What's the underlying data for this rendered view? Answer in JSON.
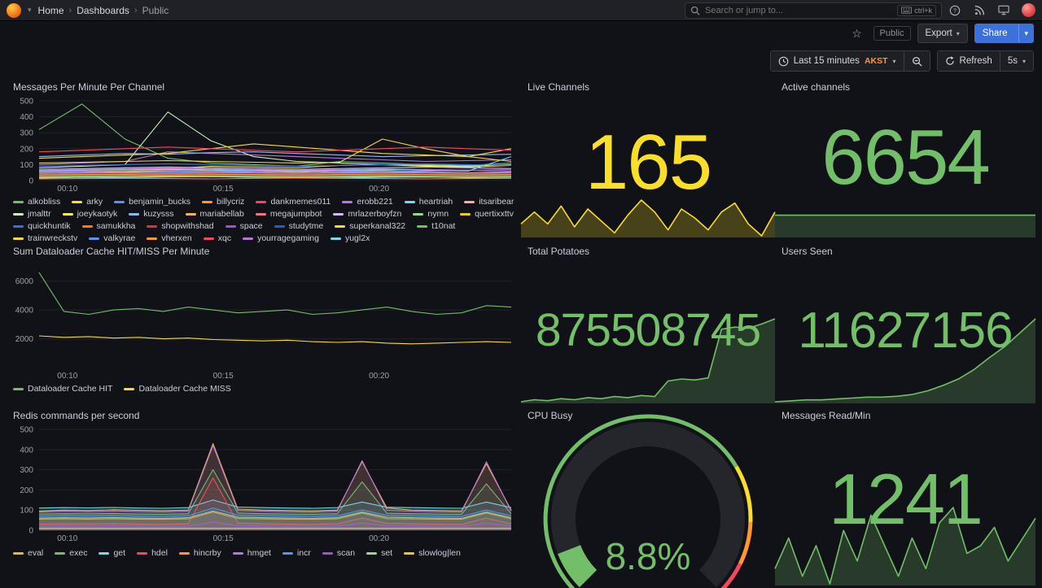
{
  "nav": {
    "breadcrumb": [
      "Home",
      "Dashboards",
      "Public"
    ],
    "search_placeholder": "Search or jump to...",
    "shortcut": "ctrl+k"
  },
  "toolbar": {
    "tag": "Public",
    "export_label": "Export",
    "share_label": "Share"
  },
  "timebar": {
    "range_label": "Last 15 minutes",
    "timezone": "AKST",
    "refresh_label": "Refresh",
    "interval": "5s"
  },
  "colors": {
    "yellow": "#FADE2A",
    "green": "#73BF69",
    "orange": "#FF9830",
    "red": "#F2495C",
    "share_blue": "#3D71D9"
  },
  "chart_data": [
    {
      "id": "messages_per_minute",
      "type": "line",
      "title": "Messages Per Minute Per Channel",
      "ylim": [
        0,
        500
      ],
      "yticks": [
        0,
        100,
        200,
        300,
        400,
        500
      ],
      "xticks": [
        "00:10",
        "00:15",
        "00:20"
      ],
      "xtick_pos": [
        0.06,
        0.39,
        0.72
      ],
      "grid": true,
      "legend_position": "bottom",
      "series": [
        {
          "name": "alkobliss",
          "color": "#73BF69",
          "values": [
            320,
            480,
            260,
            140,
            110,
            100,
            90,
            120,
            110,
            100,
            95,
            110
          ]
        },
        {
          "name": "arky",
          "color": "#FADE2A",
          "values": [
            60,
            70,
            80,
            75,
            90,
            85,
            80,
            95,
            100,
            90,
            85,
            95
          ]
        },
        {
          "name": "benjamin_bucks",
          "color": "#5794F2",
          "values": [
            40,
            45,
            50,
            55,
            50,
            60,
            65,
            60,
            55,
            50,
            45,
            55
          ]
        },
        {
          "name": "billycriz",
          "color": "#FF9830",
          "values": [
            30,
            35,
            40,
            45,
            40,
            35,
            30,
            45,
            50,
            40,
            35,
            40
          ]
        },
        {
          "name": "dankmemes011",
          "color": "#F2495C",
          "values": [
            20,
            25,
            30,
            28,
            35,
            30,
            25,
            30,
            28,
            26,
            30,
            32
          ]
        },
        {
          "name": "erobb221",
          "color": "#B877D9",
          "values": [
            100,
            110,
            120,
            180,
            170,
            160,
            150,
            140,
            130,
            120,
            125,
            130
          ]
        },
        {
          "name": "heartriah",
          "color": "#70DBED",
          "values": [
            15,
            20,
            18,
            22,
            25,
            20,
            18,
            16,
            20,
            22,
            18,
            20
          ]
        },
        {
          "name": "itsaribear",
          "color": "#FFA6B0",
          "values": [
            55,
            60,
            65,
            70,
            65,
            60,
            55,
            60,
            65,
            70,
            65,
            60
          ]
        },
        {
          "name": "jmalttr",
          "color": "#C8F2C2",
          "values": [
            80,
            90,
            100,
            430,
            250,
            150,
            120,
            110,
            100,
            95,
            90,
            100
          ]
        },
        {
          "name": "joeykaotyk",
          "color": "#FFEE52",
          "values": [
            45,
            50,
            55,
            60,
            55,
            50,
            45,
            50,
            55,
            50,
            45,
            50
          ]
        },
        {
          "name": "kuzysss",
          "color": "#8AB8FF",
          "values": [
            150,
            160,
            170,
            165,
            175,
            180,
            170,
            160,
            150,
            155,
            160,
            165
          ]
        },
        {
          "name": "mariabellab",
          "color": "#FFB357",
          "values": [
            25,
            30,
            35,
            30,
            25,
            30,
            35,
            30,
            25,
            30,
            35,
            30
          ]
        },
        {
          "name": "megajumpbot",
          "color": "#FF7383",
          "values": [
            10,
            12,
            14,
            12,
            10,
            14,
            16,
            14,
            12,
            10,
            12,
            14
          ]
        },
        {
          "name": "mrlazerboyfzn",
          "color": "#DEB6F2",
          "values": [
            70,
            75,
            80,
            85,
            80,
            75,
            70,
            75,
            80,
            85,
            80,
            75
          ]
        },
        {
          "name": "nymn",
          "color": "#96D98D",
          "values": [
            35,
            40,
            45,
            50,
            45,
            40,
            35,
            40,
            45,
            40,
            35,
            40
          ]
        },
        {
          "name": "quertixxttv",
          "color": "#F2CC0C",
          "values": [
            20,
            22,
            24,
            26,
            24,
            22,
            20,
            22,
            24,
            22,
            20,
            22
          ]
        },
        {
          "name": "quickhuntik",
          "color": "#3274D9",
          "values": [
            90,
            95,
            100,
            105,
            100,
            95,
            90,
            95,
            100,
            105,
            100,
            95
          ]
        },
        {
          "name": "samukkha",
          "color": "#FF780A",
          "values": [
            50,
            55,
            60,
            65,
            60,
            55,
            50,
            55,
            60,
            55,
            50,
            55
          ]
        },
        {
          "name": "shopwithshad",
          "color": "#E02F44",
          "values": [
            30,
            32,
            34,
            36,
            34,
            32,
            30,
            32,
            34,
            32,
            30,
            32
          ]
        },
        {
          "name": "space",
          "color": "#A352CC",
          "values": [
            65,
            70,
            75,
            80,
            75,
            70,
            65,
            70,
            75,
            70,
            65,
            70
          ]
        },
        {
          "name": "studytme",
          "color": "#1F60C4",
          "values": [
            40,
            42,
            44,
            46,
            44,
            42,
            40,
            42,
            44,
            42,
            40,
            42
          ]
        },
        {
          "name": "superkanal322",
          "color": "#FAD34A",
          "values": [
            110,
            115,
            120,
            125,
            120,
            115,
            110,
            115,
            260,
            200,
            150,
            120
          ]
        },
        {
          "name": "t10nat",
          "color": "#73BF69",
          "values": [
            25,
            28,
            30,
            32,
            30,
            28,
            25,
            28,
            30,
            28,
            25,
            28
          ]
        },
        {
          "name": "trainwreckstv",
          "color": "#FADE2A",
          "values": [
            140,
            150,
            160,
            170,
            200,
            230,
            210,
            190,
            170,
            160,
            150,
            200
          ]
        },
        {
          "name": "valkyrae",
          "color": "#5794F2",
          "values": [
            55,
            60,
            65,
            60,
            55,
            60,
            65,
            60,
            55,
            60,
            65,
            60
          ]
        },
        {
          "name": "vherxen",
          "color": "#FF9830",
          "values": [
            35,
            38,
            40,
            42,
            40,
            38,
            35,
            38,
            40,
            38,
            35,
            38
          ]
        },
        {
          "name": "xqc",
          "color": "#F2495C",
          "values": [
            180,
            190,
            200,
            210,
            200,
            190,
            180,
            190,
            200,
            210,
            200,
            190
          ]
        },
        {
          "name": "yourragegaming",
          "color": "#B877D9",
          "values": [
            45,
            48,
            50,
            52,
            50,
            48,
            45,
            48,
            50,
            48,
            45,
            48
          ]
        },
        {
          "name": "yugl2x",
          "color": "#70DBED",
          "values": [
            60,
            65,
            70,
            75,
            70,
            65,
            60,
            65,
            70,
            65,
            60,
            150
          ]
        }
      ]
    },
    {
      "id": "live_channels",
      "type": "stat",
      "title": "Live Channels",
      "value": "165",
      "color": "#FADE2A",
      "spark": [
        150,
        158,
        150,
        162,
        148,
        160,
        152,
        144,
        156,
        166,
        158,
        146,
        160,
        154,
        146,
        158,
        164,
        150,
        142,
        158
      ]
    },
    {
      "id": "active_channels",
      "type": "stat",
      "title": "Active channels",
      "value": "6654",
      "color": "#73BF69",
      "spark": [
        1,
        1,
        1,
        1,
        1,
        1,
        1,
        1,
        1,
        1
      ],
      "spark_range": [
        0,
        1.18
      ]
    },
    {
      "id": "dataloader_cache",
      "type": "line",
      "title": "Sum Dataloader Cache HIT/MISS Per Minute",
      "ylim": [
        0,
        7000
      ],
      "yticks": [
        2000,
        4000,
        6000
      ],
      "xticks": [
        "00:10",
        "00:15",
        "00:20"
      ],
      "xtick_pos": [
        0.06,
        0.39,
        0.72
      ],
      "grid": true,
      "legend_position": "bottom",
      "series": [
        {
          "name": "Dataloader Cache HIT",
          "color": "#73BF69",
          "values": [
            6600,
            3900,
            3700,
            4000,
            4100,
            3900,
            4200,
            4000,
            3800,
            3900,
            4000,
            3700,
            3800,
            4000,
            4200,
            3900,
            3700,
            3800,
            4300,
            4200
          ]
        },
        {
          "name": "Dataloader Cache MISS",
          "color": "#FADE2A",
          "values": [
            2200,
            2100,
            2150,
            2050,
            2100,
            2000,
            2050,
            1950,
            1900,
            1850,
            1900,
            1800,
            1750,
            1800,
            1700,
            1650,
            1700,
            1750,
            1800,
            1750
          ]
        }
      ]
    },
    {
      "id": "total_potatoes",
      "type": "stat",
      "title": "Total Potatoes",
      "value": "875508745",
      "color": "#73BF69",
      "spark": [
        20,
        22,
        21,
        23,
        22,
        24,
        23,
        25,
        24,
        26,
        25,
        40,
        42,
        41,
        43,
        90,
        92,
        91,
        95,
        100
      ]
    },
    {
      "id": "users_seen",
      "type": "stat",
      "title": "Users Seen",
      "value": "11627156",
      "color": "#73BF69",
      "spark": [
        10,
        11,
        12,
        12,
        13,
        14,
        15,
        15,
        16,
        18,
        22,
        28,
        35,
        45,
        58,
        70,
        85,
        100
      ]
    },
    {
      "id": "redis_commands",
      "type": "line",
      "title": "Redis commands per second",
      "ylim": [
        0,
        500
      ],
      "yticks": [
        0,
        100,
        200,
        300,
        400,
        500
      ],
      "xticks": [
        "00:10",
        "00:15",
        "00:20"
      ],
      "xtick_pos": [
        0.06,
        0.39,
        0.72
      ],
      "grid": true,
      "fill": true,
      "legend_position": "bottom",
      "series": [
        {
          "name": "eval",
          "color": "#EAB839",
          "values": [
            95,
            100,
            98,
            102,
            99,
            97,
            100,
            430,
            105,
            100,
            98,
            96,
            100,
            340,
            110,
            100,
            98,
            96,
            330,
            100
          ]
        },
        {
          "name": "exec",
          "color": "#73BF69",
          "values": [
            80,
            82,
            81,
            83,
            80,
            79,
            82,
            300,
            85,
            82,
            80,
            79,
            82,
            240,
            84,
            82,
            80,
            79,
            230,
            82
          ]
        },
        {
          "name": "get",
          "color": "#70DBED",
          "values": [
            110,
            112,
            111,
            113,
            110,
            109,
            112,
            150,
            115,
            112,
            110,
            109,
            112,
            140,
            114,
            112,
            110,
            109,
            140,
            112
          ]
        },
        {
          "name": "hdel",
          "color": "#F2495C",
          "values": [
            30,
            32,
            31,
            33,
            30,
            29,
            32,
            260,
            35,
            32,
            30,
            29,
            32,
            60,
            34,
            32,
            30,
            29,
            60,
            32
          ]
        },
        {
          "name": "hincrby",
          "color": "#FF9830",
          "values": [
            55,
            56,
            55,
            57,
            55,
            54,
            56,
            90,
            58,
            56,
            55,
            54,
            56,
            85,
            57,
            56,
            55,
            54,
            85,
            56
          ]
        },
        {
          "name": "hmget",
          "color": "#B877D9",
          "values": [
            90,
            95,
            92,
            96,
            93,
            91,
            95,
            420,
            98,
            95,
            92,
            90,
            95,
            345,
            99,
            95,
            92,
            90,
            340,
            95
          ]
        },
        {
          "name": "incr",
          "color": "#5794F2",
          "values": [
            70,
            72,
            71,
            73,
            70,
            69,
            72,
            110,
            75,
            72,
            70,
            69,
            72,
            100,
            74,
            72,
            70,
            69,
            100,
            72
          ]
        },
        {
          "name": "scan",
          "color": "#A352CC",
          "values": [
            20,
            21,
            20,
            22,
            20,
            19,
            21,
            40,
            23,
            21,
            20,
            19,
            21,
            35,
            22,
            21,
            20,
            19,
            35,
            21
          ]
        },
        {
          "name": "set",
          "color": "#96D98D",
          "values": [
            60,
            62,
            61,
            63,
            60,
            59,
            62,
            95,
            65,
            62,
            60,
            59,
            62,
            90,
            64,
            62,
            60,
            59,
            90,
            62
          ]
        },
        {
          "name": "slowlog|len",
          "color": "#F2CC0C",
          "values": [
            10,
            10,
            10,
            10,
            10,
            10,
            10,
            10,
            10,
            10,
            10,
            10,
            10,
            10,
            10,
            10,
            10,
            10,
            10,
            10
          ]
        }
      ]
    },
    {
      "id": "cpu_busy",
      "type": "gauge",
      "title": "CPU Busy",
      "value": 8.8,
      "value_text": "8.8%",
      "unit": "%",
      "min": 0,
      "max": 100,
      "color": "#73BF69",
      "thresholds": [
        {
          "from": 0.0,
          "to": 0.72,
          "color": "#73BF69"
        },
        {
          "from": 0.72,
          "to": 0.84,
          "color": "#FADE2A"
        },
        {
          "from": 0.84,
          "to": 0.93,
          "color": "#FF9830"
        },
        {
          "from": 0.93,
          "to": 1.0,
          "color": "#F2495C"
        }
      ]
    },
    {
      "id": "messages_read_min",
      "type": "stat",
      "title": "Messages Read/Min",
      "value": "1241",
      "color": "#73BF69",
      "spark": [
        55,
        75,
        50,
        70,
        45,
        80,
        60,
        90,
        70,
        50,
        75,
        55,
        85,
        95,
        65,
        70,
        82,
        60,
        74,
        88
      ]
    }
  ]
}
